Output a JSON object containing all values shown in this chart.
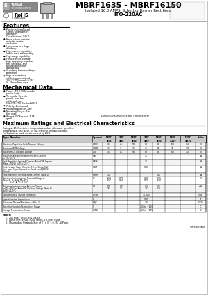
{
  "title": "MBRF1635 - MBRF16150",
  "subtitle": "Isolated 16.0 AMPS. Schottky Barrier Rectifiers",
  "package": "ITO-220AC",
  "bg_color": "#ffffff",
  "features_title": "Features",
  "features": [
    "Plastic material used carries Underwriters Laboratory Classifications 94V-0",
    "Metal silicon junction, majority carrier conduction",
    "Low power loss, high efficiency",
    "High current capability, low forward voltage drop",
    "High surge capability",
    "For use in low voltage, high frequency inverters, free wheeling, and polarity protection applications",
    "Guardring for overvoltage protection",
    "High temperature soldering guaranteed: 260°C/10 seconds,0.25” (6.35mm)from case"
  ],
  "mech_title": "Mechanical Data",
  "mech": [
    "Cases: ITO-220AC molded plastic body",
    "Terminals: Pure tin plated, lead free, solderable per MIL-STD-750, Method 2026",
    "Polarity: As marked",
    "Mounting position: Any",
    "Mounting Torque: 5In. - 6In. max.",
    "Weight: 0.08 ounce, 2.24 grams"
  ],
  "dim_note": "Dimensions in inches and (millimeters)",
  "max_title": "Maximum Ratings and Electrical Characteristics",
  "max_note1": "Rating at 25°C ambient temperature unless otherwise specified.",
  "max_note2": "Single phase, half wave, 60 Hz, resistive or inductive load.",
  "max_note3": "For capacitive load: derate current by 20%",
  "table_col_names": [
    "Type Number",
    "Symbol",
    "MBRF\n1635",
    "MBRF\n1645",
    "MBRF\n1650",
    "MBRF\n1660",
    "MBRF\n1680",
    "MBRF\n16100",
    "MBRF\n16150",
    "Units"
  ],
  "table_rows": [
    {
      "param": "Maximum Repetitive Peak Reverse Voltage",
      "symbol": "VRRM",
      "vals": [
        "35",
        "45",
        "50",
        "60",
        "80",
        "100",
        "150"
      ],
      "unit": "V"
    },
    {
      "param": "Maximum RMS Voltage",
      "symbol": "VRMS",
      "vals": [
        "25",
        "31",
        "35",
        "42",
        "56",
        "70",
        "105"
      ],
      "unit": "V"
    },
    {
      "param": "Maximum DC Blocking Voltage",
      "symbol": "VDC",
      "vals": [
        "35",
        "45",
        "50",
        "60",
        "80",
        "100",
        "150"
      ],
      "unit": "V"
    },
    {
      "param": "Maximum Average Forward Rectified Current\nat TC=125°C",
      "symbol": "IFAV",
      "vals": [
        "",
        "",
        "",
        "16",
        "",
        "",
        ""
      ],
      "unit": "A"
    },
    {
      "param": "Peak Repetitive Forward Current (Rated VR, Square\nWave, 20KHz) at TC=125°C",
      "symbol": "IFRM",
      "vals": [
        "",
        "",
        "",
        "32",
        "",
        "",
        ""
      ],
      "unit": "A"
    },
    {
      "param": "Peak Forward Surge Current, 8.3 ms Single Half\nSine wave Superimposed on Rated Load (JEDEC\nMethod)",
      "symbol": "IFSM",
      "vals": [
        "",
        "",
        "",
        "150",
        "",
        "",
        ""
      ],
      "unit": "A"
    },
    {
      "param": "Peak Repetitive Reverse Surge Current (Note 1)",
      "symbol": "IRRM",
      "vals": [
        "1.0",
        "",
        "",
        "",
        "0.5",
        "",
        ""
      ],
      "unit": "A"
    },
    {
      "param": "Maximum Instantaneous Forward Voltage at\n(Note 2)  IF=16A, TA=25°C\n            IF=16A, TC=125°C",
      "symbol": "VF",
      "vals": [
        "0.60\n0.57",
        "0.75\n0.68",
        "",
        "0.85\n0.75",
        "0.95\n0.90",
        "",
        ""
      ],
      "unit": "V"
    },
    {
      "param": "Maximum Instantaneous Reverse Current\n(a) TA=25°C at Rated DC Blocking Voltage (Note 2)\n(b) TC=125°C",
      "symbol": "IR",
      "vals": [
        "0.5\n15",
        "0.5\n10",
        "",
        "0.3\n7.5",
        "0.1\n5.0",
        "",
        ""
      ],
      "unit": "mA"
    },
    {
      "param": "Voltage Rate of Change (Rated VR)",
      "symbol": "dV/dt",
      "vals": [
        "",
        "",
        "",
        "10,000",
        "",
        "",
        ""
      ],
      "unit": "V/μs"
    },
    {
      "param": "Typical Junction Capacitance",
      "symbol": "CJ",
      "vals": [
        "",
        "",
        "",
        "500",
        "",
        "",
        ""
      ],
      "unit": "pF"
    },
    {
      "param": "Maximum Thermal Resistance (Note 3)",
      "symbol": "RθJC",
      "vals": [
        "",
        "",
        "",
        "3.0",
        "",
        "",
        ""
      ],
      "unit": "°C/W"
    },
    {
      "param": "Operating Junction Temperature Range",
      "symbol": "TJ",
      "vals": [
        "",
        "",
        "",
        "-65 to +150",
        "",
        "",
        ""
      ],
      "unit": "°C"
    },
    {
      "param": "Storage Temperature Range",
      "symbol": "TSTG",
      "vals": [
        "",
        "",
        "",
        "-65 to +175",
        "",
        "",
        ""
      ],
      "unit": "°C"
    }
  ],
  "notes": [
    "1.  2us Pulse Width, f=1.0 KHz.",
    "2.  Pulse Test: 300us Pulse Width, 1% Duty Cycle.",
    "3.  Mounted on Heatsink Size of 2'' x 3'' x 0.25'' Al-Plate."
  ],
  "version": "Version: A08",
  "watermark": "ozus",
  "watermark_color": "#c5dff0",
  "table_header_bg": "#c8c8c8",
  "table_row_bg1": "#f2f2f2",
  "table_row_bg2": "#ffffff",
  "section_line_color": "#000000",
  "logo_bg": "#909090",
  "logo_text_color": "#ffffff"
}
